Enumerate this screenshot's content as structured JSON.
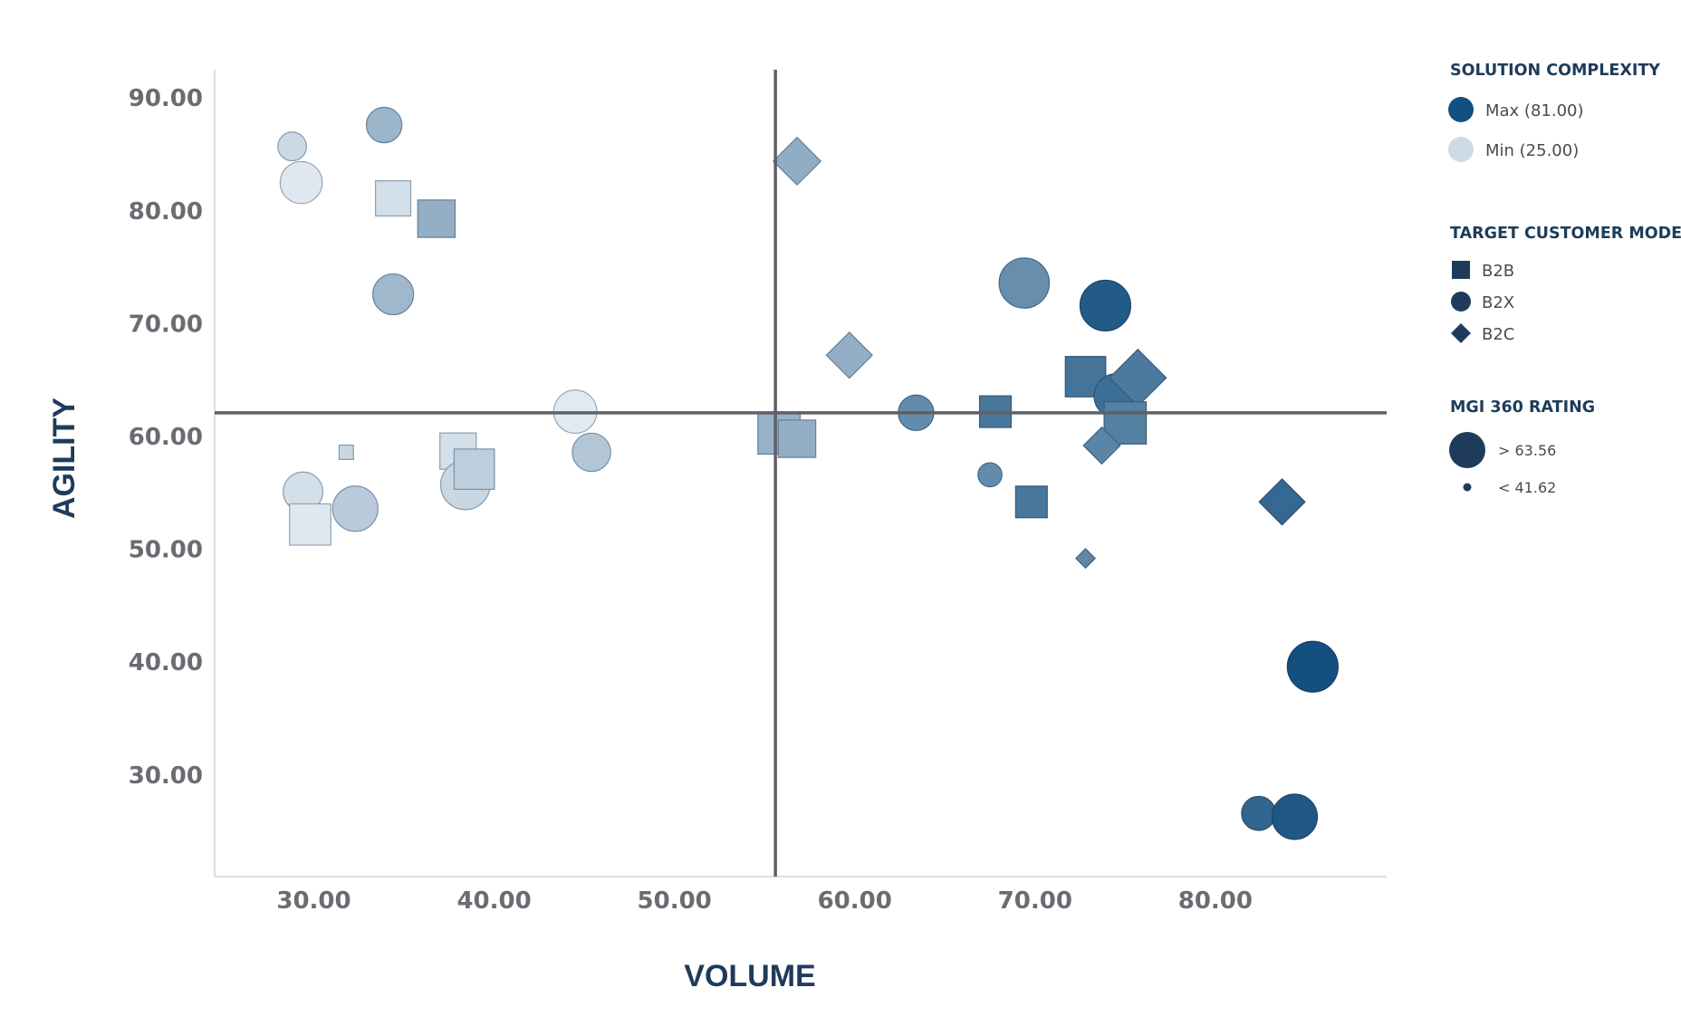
{
  "chart_data": {
    "type": "scatter",
    "xlabel": "VOLUME",
    "ylabel": "AGILITY",
    "xlim": [
      24.5,
      89.5
    ],
    "ylim": [
      21,
      92.5
    ],
    "x_ticks": [
      30,
      40,
      50,
      60,
      70,
      80
    ],
    "y_ticks": [
      30,
      40,
      50,
      60,
      70,
      80,
      90
    ],
    "x_tick_labels": [
      "30.00",
      "40.00",
      "50.00",
      "60.00",
      "70.00",
      "80.00"
    ],
    "y_tick_labels": [
      "30.00",
      "40.00",
      "50.00",
      "60.00",
      "70.00",
      "80.00",
      "90.00"
    ],
    "reference_lines": {
      "x": 55.6,
      "y": 62.1
    },
    "grid": false,
    "encodings": {
      "color": "SOLUTION COMPLEXITY",
      "shape": "TARGET CUSTOMER MODEL",
      "size": "MGI 360 RATING"
    },
    "color_range": {
      "min": 25,
      "max": 81,
      "min_color": "#e6edf3",
      "max_color": "#14507f"
    },
    "size_range": {
      "min": 41.62,
      "max": 63.56
    },
    "points": [
      {
        "x": 28.8,
        "y": 85.7,
        "shape": "B2X",
        "complexity": 32,
        "rating": 46
      },
      {
        "x": 29.3,
        "y": 82.5,
        "shape": "B2X",
        "complexity": 27,
        "rating": 55
      },
      {
        "x": 33.9,
        "y": 87.6,
        "shape": "B2X",
        "complexity": 45,
        "rating": 50
      },
      {
        "x": 34.4,
        "y": 81.1,
        "shape": "B2B",
        "complexity": 30,
        "rating": 53
      },
      {
        "x": 36.8,
        "y": 79.3,
        "shape": "B2B",
        "complexity": 47,
        "rating": 55
      },
      {
        "x": 34.4,
        "y": 72.6,
        "shape": "B2X",
        "complexity": 44,
        "rating": 54
      },
      {
        "x": 31.8,
        "y": 58.6,
        "shape": "B2B",
        "complexity": 33,
        "rating": 42
      },
      {
        "x": 29.4,
        "y": 55.1,
        "shape": "B2X",
        "complexity": 30,
        "rating": 53
      },
      {
        "x": 29.8,
        "y": 52.2,
        "shape": "B2B",
        "complexity": 27,
        "rating": 59
      },
      {
        "x": 32.3,
        "y": 53.6,
        "shape": "B2X",
        "complexity": 37,
        "rating": 58
      },
      {
        "x": 38.0,
        "y": 58.7,
        "shape": "B2B",
        "complexity": 30,
        "rating": 54
      },
      {
        "x": 38.4,
        "y": 55.7,
        "shape": "B2X",
        "complexity": 33,
        "rating": 62
      },
      {
        "x": 38.9,
        "y": 57.1,
        "shape": "B2B",
        "complexity": 36,
        "rating": 58
      },
      {
        "x": 44.5,
        "y": 62.2,
        "shape": "B2X",
        "complexity": 26,
        "rating": 56
      },
      {
        "x": 45.4,
        "y": 58.6,
        "shape": "B2X",
        "complexity": 39,
        "rating": 52
      },
      {
        "x": 56.8,
        "y": 84.4,
        "shape": "B2C",
        "complexity": 48,
        "rating": 53
      },
      {
        "x": 55.8,
        "y": 60.3,
        "shape": "B2B",
        "complexity": 46,
        "rating": 60
      },
      {
        "x": 56.8,
        "y": 59.8,
        "shape": "B2B",
        "complexity": 47,
        "rating": 55
      },
      {
        "x": 59.7,
        "y": 67.2,
        "shape": "B2C",
        "complexity": 47,
        "rating": 52
      },
      {
        "x": 63.4,
        "y": 62.1,
        "shape": "B2X",
        "complexity": 60,
        "rating": 50
      },
      {
        "x": 67.8,
        "y": 62.2,
        "shape": "B2B",
        "complexity": 67,
        "rating": 50
      },
      {
        "x": 67.5,
        "y": 56.6,
        "shape": "B2X",
        "complexity": 60,
        "rating": 44
      },
      {
        "x": 69.8,
        "y": 54.2,
        "shape": "B2B",
        "complexity": 67,
        "rating": 50
      },
      {
        "x": 69.4,
        "y": 73.6,
        "shape": "B2X",
        "complexity": 59,
        "rating": 63
      },
      {
        "x": 73.9,
        "y": 71.6,
        "shape": "B2X",
        "complexity": 77,
        "rating": 63.5
      },
      {
        "x": 72.8,
        "y": 65.3,
        "shape": "B2B",
        "complexity": 68,
        "rating": 58
      },
      {
        "x": 74.5,
        "y": 63.6,
        "shape": "B2X",
        "complexity": 70,
        "rating": 57
      },
      {
        "x": 75.7,
        "y": 65.2,
        "shape": "B2C",
        "complexity": 66,
        "rating": 60
      },
      {
        "x": 75.0,
        "y": 61.2,
        "shape": "B2B",
        "complexity": 64,
        "rating": 60
      },
      {
        "x": 73.7,
        "y": 59.2,
        "shape": "B2C",
        "complexity": 62,
        "rating": 47
      },
      {
        "x": 72.8,
        "y": 49.2,
        "shape": "B2C",
        "complexity": 61,
        "rating": 42
      },
      {
        "x": 83.7,
        "y": 54.2,
        "shape": "B2C",
        "complexity": 72,
        "rating": 52
      },
      {
        "x": 85.4,
        "y": 39.6,
        "shape": "B2X",
        "complexity": 81,
        "rating": 63.56
      },
      {
        "x": 82.4,
        "y": 26.6,
        "shape": "B2X",
        "complexity": 73,
        "rating": 49
      },
      {
        "x": 84.4,
        "y": 26.3,
        "shape": "B2X",
        "complexity": 78,
        "rating": 58
      }
    ]
  },
  "legend": {
    "complexity": {
      "title": "SOLUTION COMPLEXITY",
      "max_label": "Max (81.00)",
      "min_label": "Min (25.00)",
      "max_color": "#14507f",
      "min_color": "#cddbe8"
    },
    "shape": {
      "title": "TARGET CUSTOMER MODEL",
      "items": [
        "B2B",
        "B2X",
        "B2C"
      ],
      "color": "#1e3c5a"
    },
    "rating": {
      "title": "MGI 360 RATING",
      "max_label": "> 63.56",
      "min_label": "< 41.62",
      "color": "#1e3c5a"
    }
  },
  "colors": {
    "reference_line": "#5f5f66",
    "axis_line": "#d4d4d8",
    "tick_text": "#6b6b72",
    "title_text": "#1e3c5a"
  }
}
